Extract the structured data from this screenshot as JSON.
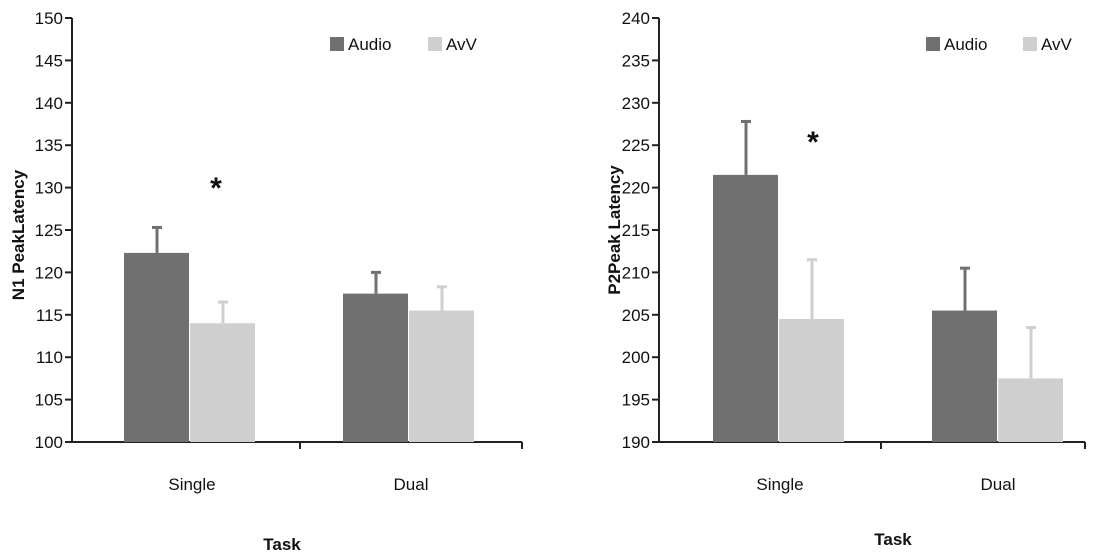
{
  "colors": {
    "Audio": "#707070",
    "AvV": "#cfcfcf",
    "axis": "#222222"
  },
  "chart_data": [
    {
      "type": "bar",
      "title": "",
      "xlabel": "Task",
      "ylabel": "N1 PeakLatency",
      "categories": [
        "Single",
        "Dual"
      ],
      "ylim": [
        100,
        150
      ],
      "yticks": [
        100,
        105,
        110,
        115,
        120,
        125,
        130,
        135,
        140,
        145,
        150
      ],
      "legend_position": "top-right",
      "grid": false,
      "series": [
        {
          "name": "Audio",
          "values": [
            122.3,
            117.5
          ],
          "errors": [
            3.0,
            2.5
          ]
        },
        {
          "name": "AvV",
          "values": [
            114.0,
            115.5
          ],
          "errors": [
            2.5,
            2.8
          ]
        }
      ],
      "annotations": [
        {
          "text": "*",
          "category": "Single"
        }
      ]
    },
    {
      "type": "bar",
      "title": "",
      "xlabel": "Task",
      "ylabel": "P2Peak Latency",
      "categories": [
        "Single",
        "Dual"
      ],
      "ylim": [
        190,
        240
      ],
      "yticks": [
        190,
        195,
        200,
        205,
        210,
        215,
        220,
        225,
        230,
        235,
        240
      ],
      "legend_position": "top-right",
      "grid": false,
      "series": [
        {
          "name": "Audio",
          "values": [
            221.5,
            205.5
          ],
          "errors": [
            6.3,
            5.0
          ]
        },
        {
          "name": "AvV",
          "values": [
            204.5,
            197.5
          ],
          "errors": [
            7.0,
            6.0
          ]
        }
      ],
      "annotations": [
        {
          "text": "*",
          "category": "Single"
        }
      ]
    }
  ]
}
